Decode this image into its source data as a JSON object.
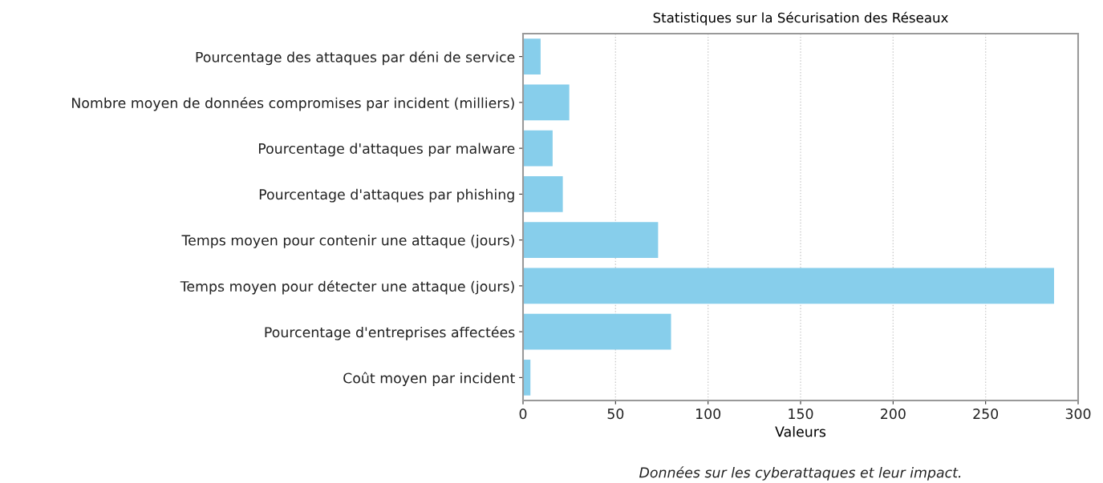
{
  "chart_data": {
    "type": "bar",
    "orientation": "horizontal",
    "title": "Statistiques sur la Sécurisation des Réseaux",
    "xlabel": "Valeurs",
    "categories": [
      "Pourcentage des attaques par déni de service",
      "Nombre moyen de données compromises par incident (milliers)",
      "Pourcentage d'attaques par malware",
      "Pourcentage d'attaques par phishing",
      "Temps moyen pour contenir une attaque (jours)",
      "Temps moyen pour détecter une attaque (jours)",
      "Pourcentage d'entreprises affectées",
      "Coût moyen par incident"
    ],
    "values": [
      9.5,
      25,
      16,
      21.5,
      73,
      287,
      80,
      4
    ],
    "color": "#87ceeb",
    "xlim": [
      0,
      300
    ],
    "xticks": [
      0,
      50,
      100,
      150,
      200,
      250,
      300
    ],
    "grid": "x",
    "annotations": [
      "Données sur les cyberattaques et leur impact."
    ]
  }
}
